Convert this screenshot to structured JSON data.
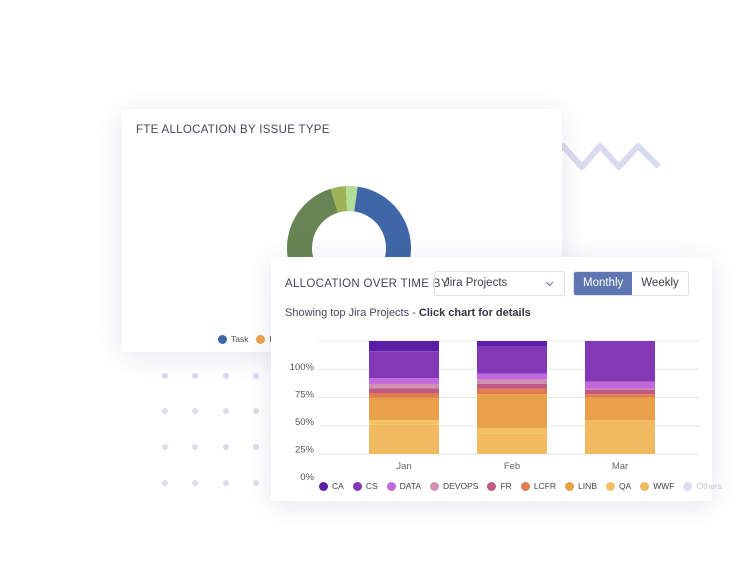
{
  "fte_card": {
    "title": "FTE ALLOCATION BY ISSUE TYPE",
    "legend": [
      {
        "label": "Task",
        "color": "#3f67a7"
      },
      {
        "label": "B",
        "color": "#eda34c"
      }
    ]
  },
  "allocation_card": {
    "title": "ALLOCATION OVER TIME BY",
    "dropdown_value": "Jira Projects",
    "toggle": {
      "monthly": "Monthly",
      "weekly": "Weekly",
      "selected": "Monthly"
    },
    "subtitle_prefix": "Showing top Jira Projects - ",
    "subtitle_bold": "Click chart for details"
  },
  "chart_data": [
    {
      "type": "pie",
      "title": "FTE ALLOCATION BY ISSUE TYPE",
      "donut": true,
      "slices": [
        {
          "label": "Task",
          "value": 50,
          "color": "#3f67a7"
        },
        {
          "label": "",
          "value": 42,
          "color": "#678453"
        },
        {
          "label": "",
          "value": 4,
          "color": "#9eb358"
        },
        {
          "label": "",
          "value": 3,
          "color": "#b2de97"
        }
      ]
    },
    {
      "type": "bar",
      "stacked": true,
      "categories": [
        "Jan",
        "Feb",
        "Mar"
      ],
      "y_tick_labels": [
        "100%",
        "75%",
        "50%",
        "25%",
        "0%"
      ],
      "grid": true,
      "legend_placement": "bottom",
      "series": [
        {
          "name": "CA",
          "color": "#5b1ea6",
          "values": [
            9,
            5,
            0
          ]
        },
        {
          "name": "CS",
          "color": "#8338b6",
          "values": [
            24,
            24,
            36
          ]
        },
        {
          "name": "DATA",
          "color": "#c068dc",
          "values": [
            5,
            5,
            6
          ]
        },
        {
          "name": "DEVOPS",
          "color": "#d191b0",
          "values": [
            4,
            4,
            1
          ]
        },
        {
          "name": "FR",
          "color": "#bd5a86",
          "values": [
            4,
            4,
            4
          ]
        },
        {
          "name": "LCFR",
          "color": "#e27a52",
          "values": [
            4,
            5,
            3
          ]
        },
        {
          "name": "LINB",
          "color": "#e9a04a",
          "values": [
            20,
            30,
            20
          ]
        },
        {
          "name": "QA",
          "color": "#f2c262",
          "values": [
            4,
            5,
            0
          ]
        },
        {
          "name": "WWF",
          "color": "#f1b960",
          "values": [
            26,
            18,
            30
          ]
        },
        {
          "name": "Others",
          "color": "#dcdcec",
          "values": [
            0,
            0,
            0
          ]
        }
      ]
    }
  ]
}
